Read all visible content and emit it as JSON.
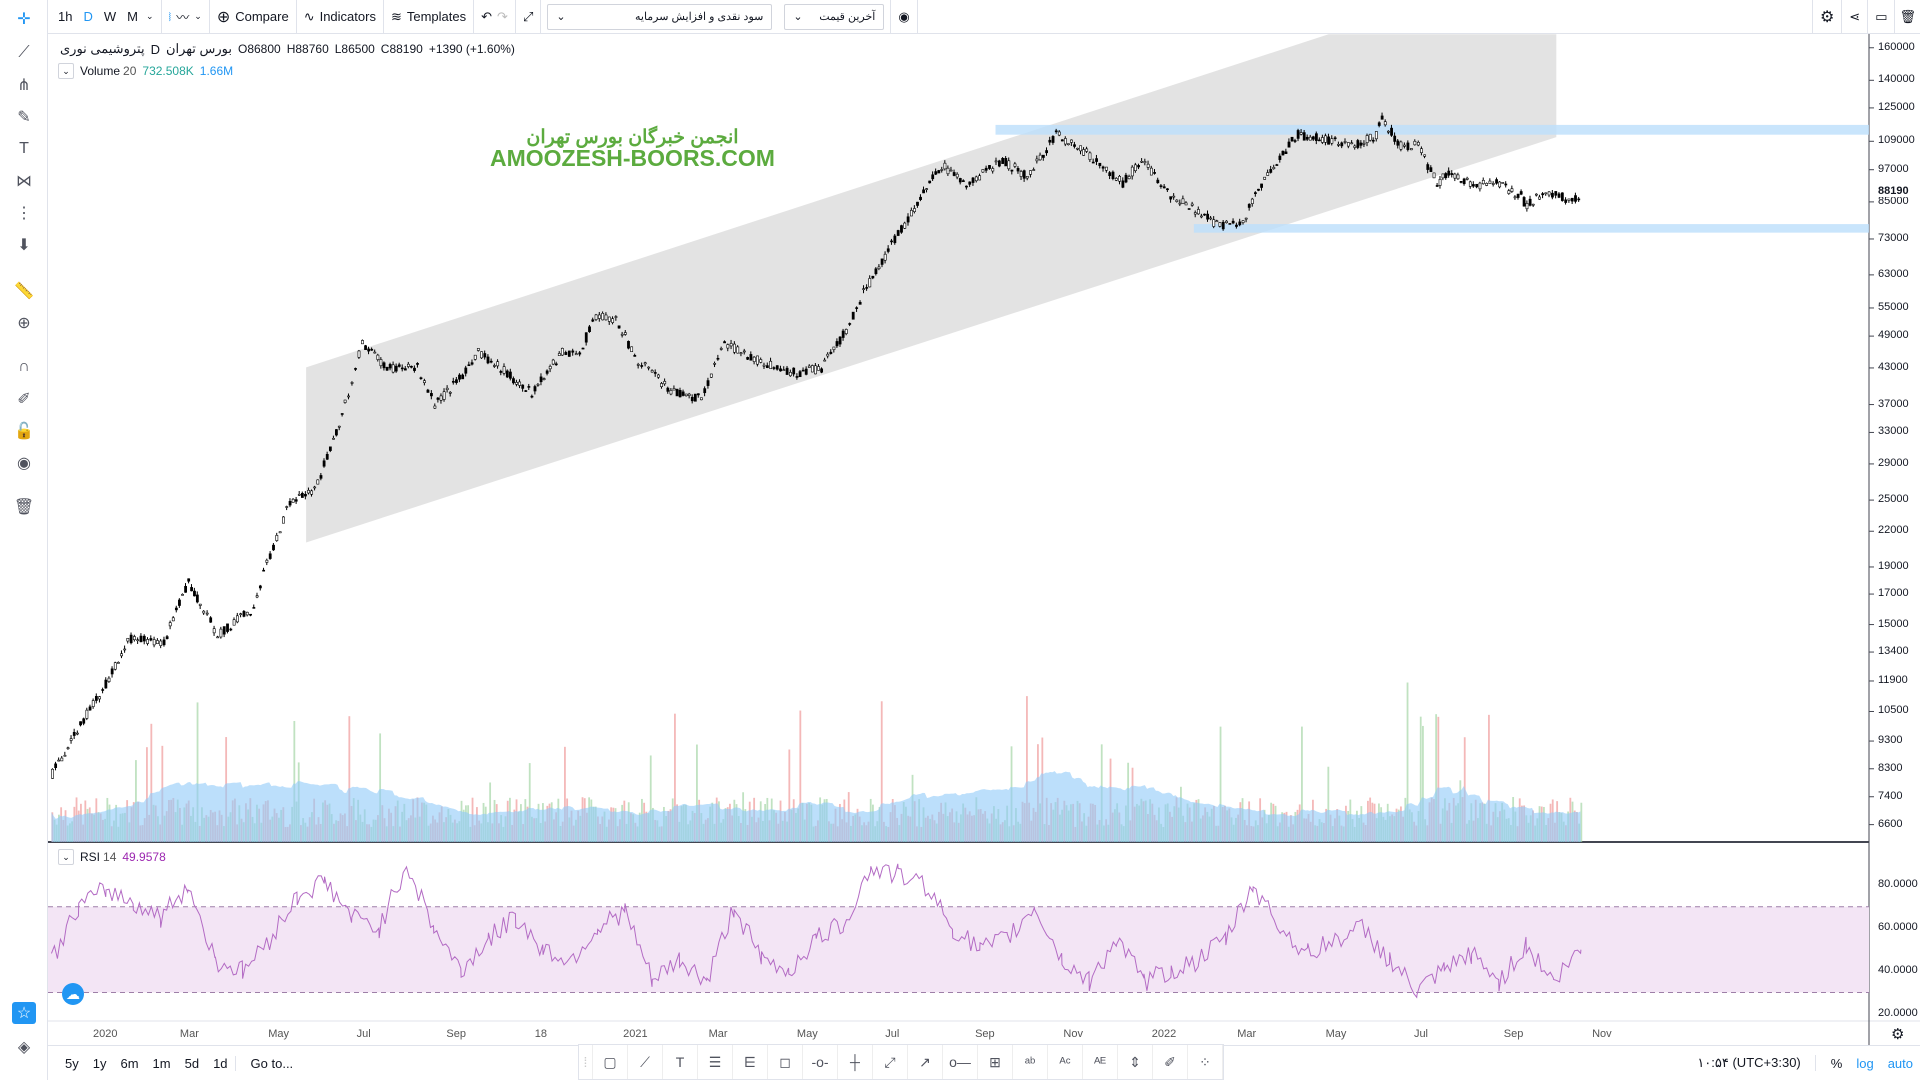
{
  "toolbar": {
    "intervals": [
      "1h",
      "D",
      "W",
      "M"
    ],
    "active_interval": "D",
    "compare": "Compare",
    "indicators": "Indicators",
    "templates": "Templates",
    "select1": "سود نقدی و افزایش سرمایه",
    "select2": "آخرین قیمت"
  },
  "legend": {
    "symbol": "پتروشیمی نوری",
    "interval": "D",
    "exchange": "بورس تهران",
    "open": "O86800",
    "high": "H88760",
    "low": "L86500",
    "close": "C88190",
    "change": "+1390 (+1.60%)",
    "volume_label": "Volume",
    "volume_len": "20",
    "volume_val": "732.508K",
    "volume_ma": "1.66M",
    "rsi_label": "RSI",
    "rsi_len": "14",
    "rsi_val": "49.9578"
  },
  "watermark": {
    "line1": "انجمن خبرگان بورس تهران",
    "line2": "AMOOZESH-BOORS.COM"
  },
  "price_axis": {
    "labels": [
      "160000",
      "140000",
      "125000",
      "109000",
      "97000",
      "85000",
      "73000",
      "63000",
      "55000",
      "49000",
      "43000",
      "37000",
      "33000",
      "29000",
      "25000",
      "22000",
      "19000",
      "17000",
      "15000",
      "13400",
      "11900",
      "10500",
      "9300",
      "8300",
      "7400",
      "6600"
    ],
    "last": "88190",
    "scale": "log"
  },
  "rsi_axis": {
    "labels": [
      "80.0000",
      "60.0000",
      "40.0000",
      "20.0000"
    ],
    "bands": [
      70,
      30
    ]
  },
  "time_axis": {
    "labels": [
      [
        "2020",
        "2020-01-01"
      ],
      [
        "Mar",
        "2020-03-01"
      ],
      [
        "May",
        "2020-05-01"
      ],
      [
        "Jul",
        "2020-07-01"
      ],
      [
        "Sep",
        "2020-09-01"
      ],
      [
        "18",
        "2020-11-01"
      ],
      [
        "2021",
        "2021-01-01"
      ],
      [
        "Mar",
        "2021-03-01"
      ],
      [
        "May",
        "2021-05-01"
      ],
      [
        "Jul",
        "2021-07-01"
      ],
      [
        "Sep",
        "2021-09-01"
      ],
      [
        "Nov",
        "2021-11-01"
      ],
      [
        "2022",
        "2022-01-01"
      ],
      [
        "Mar",
        "2022-03-01"
      ],
      [
        "May",
        "2022-05-01"
      ],
      [
        "Jul",
        "2022-07-01"
      ],
      [
        "Sep",
        "2022-09-01"
      ],
      [
        "Nov",
        "2022-11-01"
      ]
    ]
  },
  "bottom": {
    "ranges": [
      "5y",
      "1y",
      "6m",
      "1m",
      "5d",
      "1d"
    ],
    "goto": "Go to...",
    "time": "۱۰:۵۴ (UTC+3:30)",
    "percent": "%",
    "log": "log",
    "auto": "auto"
  },
  "colors": {
    "accent": "#2196f3",
    "rsi": "#9c27b0",
    "rsi_band": "#f3e5f5",
    "channel": "#e0e0e0",
    "zone": "#bbdefb",
    "volume_ma": "#90caf9",
    "watermark": "#5cab3f"
  },
  "chart_data": {
    "type": "candlestick",
    "scale": "log",
    "close": [
      [
        "2019-11-25",
        8140
      ],
      [
        "2019-12-10",
        9550
      ],
      [
        "2020-01-03",
        11970
      ],
      [
        "2020-01-16",
        14130
      ],
      [
        "2020-02-10",
        14000
      ],
      [
        "2020-02-27",
        17880
      ],
      [
        "2020-03-06",
        16300
      ],
      [
        "2020-03-18",
        14400
      ],
      [
        "2020-04-12",
        16000
      ],
      [
        "2020-04-21",
        19300
      ],
      [
        "2020-05-07",
        24800
      ],
      [
        "2020-05-24",
        26000
      ],
      [
        "2020-06-06",
        31900
      ],
      [
        "2020-06-14",
        37000
      ],
      [
        "2020-06-26",
        47600
      ],
      [
        "2020-07-13",
        43000
      ],
      [
        "2020-08-03",
        43000
      ],
      [
        "2020-08-15",
        37000
      ],
      [
        "2020-09-01",
        41000
      ],
      [
        "2020-09-14",
        46000
      ],
      [
        "2020-10-04",
        42000
      ],
      [
        "2020-10-21",
        39000
      ],
      [
        "2020-11-11",
        46000
      ],
      [
        "2020-11-23",
        45000
      ],
      [
        "2020-12-02",
        52800
      ],
      [
        "2020-12-18",
        52800
      ],
      [
        "2020-12-31",
        45000
      ],
      [
        "2021-01-12",
        42000
      ],
      [
        "2021-01-25",
        39000
      ],
      [
        "2021-02-15",
        38000
      ],
      [
        "2021-03-03",
        47600
      ],
      [
        "2021-03-28",
        44000
      ],
      [
        "2021-04-22",
        42000
      ],
      [
        "2021-05-09",
        43000
      ],
      [
        "2021-05-26",
        50000
      ],
      [
        "2021-06-07",
        58400
      ],
      [
        "2021-06-24",
        69600
      ],
      [
        "2021-07-10",
        81000
      ],
      [
        "2021-07-31",
        98900
      ],
      [
        "2021-08-17",
        91500
      ],
      [
        "2021-09-11",
        101000
      ],
      [
        "2021-09-28",
        94000
      ],
      [
        "2021-10-18",
        112000
      ],
      [
        "2021-11-08",
        104000
      ],
      [
        "2021-12-03",
        91500
      ],
      [
        "2021-12-16",
        101000
      ],
      [
        "2022-01-05",
        87000
      ],
      [
        "2022-01-22",
        82400
      ],
      [
        "2022-02-08",
        76800
      ],
      [
        "2022-02-24",
        78500
      ],
      [
        "2022-03-13",
        96400
      ],
      [
        "2022-04-03",
        112000
      ],
      [
        "2022-04-24",
        109500
      ],
      [
        "2022-05-10",
        107000
      ],
      [
        "2022-05-27",
        112000
      ],
      [
        "2022-05-31",
        119500
      ],
      [
        "2022-06-13",
        107000
      ],
      [
        "2022-06-25",
        107000
      ],
      [
        "2022-07-08",
        91500
      ],
      [
        "2022-07-16",
        96000
      ],
      [
        "2022-08-02",
        91500
      ],
      [
        "2022-08-18",
        91500
      ],
      [
        "2022-09-04",
        87000
      ],
      [
        "2022-09-08",
        83400
      ],
      [
        "2022-09-21",
        89000
      ],
      [
        "2022-10-07",
        85500
      ],
      [
        "2022-10-16",
        88190
      ]
    ],
    "rsi": [
      45,
      70,
      78,
      72,
      65,
      80,
      45,
      40,
      55,
      75,
      82,
      65,
      60,
      90,
      60,
      40,
      55,
      65,
      50,
      45,
      60,
      68,
      35,
      45,
      35,
      70,
      45,
      40,
      55,
      62,
      88,
      85,
      80,
      60,
      50,
      55,
      70,
      45,
      35,
      55,
      35,
      40,
      45,
      55,
      80,
      60,
      48,
      55,
      60,
      45,
      30,
      40,
      48,
      35,
      52,
      35,
      49.9578
    ]
  }
}
